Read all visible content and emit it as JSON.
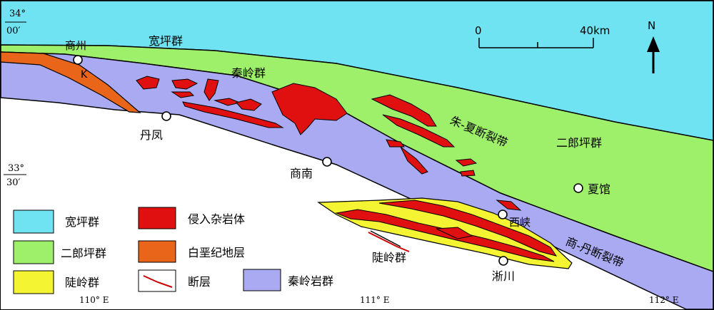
{
  "map": {
    "coords": {
      "lat_top_deg": "34°",
      "lat_top_min": "00′",
      "lat_mid_deg": "33°",
      "lat_mid_min": "30′",
      "lon_110": "110° E",
      "lon_111": "111° E",
      "lon_112": "112° E"
    },
    "north_label": "N",
    "scale": {
      "start": "0",
      "end": "40km"
    },
    "places": {
      "shangzhou": "商州",
      "danfeng": "丹凤",
      "shangnan": "商南",
      "xiaguan": "夏馆",
      "xixia": "西峡",
      "xichuan": "淅川"
    },
    "unit_labels": {
      "kuanping": "宽坪群",
      "qinling": "秦岭群",
      "erlangping": "二郎坪群",
      "taoling": "陡岭群",
      "k": "K"
    },
    "fault_labels": {
      "zhuxia": "朱-夏断裂带",
      "shangdan": "商-丹断裂带"
    },
    "colors": {
      "kuanping": "#6fe3f2",
      "erlangping": "#9ef06a",
      "taoling": "#f4f432",
      "intrusive": "#e01010",
      "cretaceous": "#e8651a",
      "qinling": "#aaaaf2",
      "fault": "#cc0000"
    }
  },
  "legend": {
    "items": [
      {
        "label": "宽坪群",
        "swatch": "kuanping"
      },
      {
        "label": "侵入杂岩体",
        "swatch": "intrusive"
      },
      {
        "label": "二郎坪群",
        "swatch": "erlangping"
      },
      {
        "label": "白垩纪地层",
        "swatch": "cretaceous"
      },
      {
        "label": "陡岭群",
        "swatch": "taoling"
      },
      {
        "label": "断层",
        "swatch": "fault-line"
      },
      {
        "label": "秦岭岩群",
        "swatch": "qinling"
      }
    ]
  }
}
